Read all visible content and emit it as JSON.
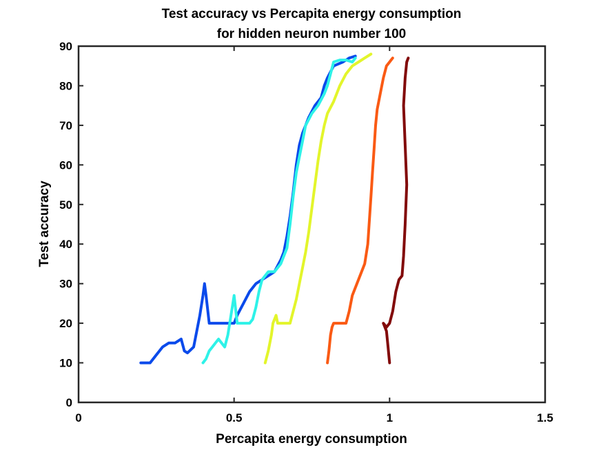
{
  "chart_data": {
    "type": "line",
    "title": "Test accuracy vs Percapita energy consumption",
    "subtitle": "for hidden neuron number 100",
    "xlabel": "Percapita energy consumption",
    "ylabel": "Test accuracy",
    "xlim": [
      0,
      1.5
    ],
    "ylim": [
      0,
      90
    ],
    "xticks": [
      0,
      0.5,
      1,
      1.5
    ],
    "xtick_labels": [
      "0",
      "0.5",
      "1",
      "1.5"
    ],
    "yticks": [
      0,
      10,
      20,
      30,
      40,
      50,
      60,
      70,
      80,
      90
    ],
    "ytick_labels": [
      "0",
      "10",
      "20",
      "30",
      "40",
      "50",
      "60",
      "70",
      "80",
      "90"
    ],
    "grid": false,
    "series": [
      {
        "color": "#0a4aeb",
        "points": [
          [
            0.2,
            10
          ],
          [
            0.23,
            10
          ],
          [
            0.25,
            12
          ],
          [
            0.27,
            14
          ],
          [
            0.29,
            15
          ],
          [
            0.31,
            15
          ],
          [
            0.33,
            16
          ],
          [
            0.34,
            13
          ],
          [
            0.35,
            12.5
          ],
          [
            0.37,
            14
          ],
          [
            0.38,
            18
          ],
          [
            0.39,
            22
          ],
          [
            0.4,
            27
          ],
          [
            0.405,
            30
          ],
          [
            0.41,
            27
          ],
          [
            0.42,
            20
          ],
          [
            0.44,
            20
          ],
          [
            0.48,
            20
          ],
          [
            0.5,
            20
          ],
          [
            0.51,
            22
          ],
          [
            0.53,
            25
          ],
          [
            0.55,
            28
          ],
          [
            0.57,
            30
          ],
          [
            0.59,
            31
          ],
          [
            0.61,
            32
          ],
          [
            0.63,
            33
          ],
          [
            0.65,
            36
          ],
          [
            0.66,
            38
          ],
          [
            0.67,
            42
          ],
          [
            0.68,
            47
          ],
          [
            0.69,
            53
          ],
          [
            0.7,
            60
          ],
          [
            0.71,
            65
          ],
          [
            0.72,
            68
          ],
          [
            0.74,
            72
          ],
          [
            0.76,
            75
          ],
          [
            0.78,
            77
          ],
          [
            0.79,
            80
          ],
          [
            0.8,
            82
          ],
          [
            0.82,
            85
          ],
          [
            0.85,
            86
          ],
          [
            0.87,
            87
          ],
          [
            0.89,
            87.5
          ]
        ]
      },
      {
        "color": "#2ef2e8",
        "points": [
          [
            0.4,
            10
          ],
          [
            0.41,
            11
          ],
          [
            0.42,
            13
          ],
          [
            0.43,
            14
          ],
          [
            0.44,
            15
          ],
          [
            0.45,
            16
          ],
          [
            0.47,
            14
          ],
          [
            0.48,
            17
          ],
          [
            0.49,
            22
          ],
          [
            0.5,
            27
          ],
          [
            0.51,
            20
          ],
          [
            0.53,
            20
          ],
          [
            0.55,
            20
          ],
          [
            0.56,
            21
          ],
          [
            0.57,
            24
          ],
          [
            0.58,
            28
          ],
          [
            0.59,
            31
          ],
          [
            0.61,
            33
          ],
          [
            0.63,
            33
          ],
          [
            0.65,
            35
          ],
          [
            0.67,
            39
          ],
          [
            0.68,
            45
          ],
          [
            0.69,
            52
          ],
          [
            0.7,
            58
          ],
          [
            0.71,
            62
          ],
          [
            0.72,
            66
          ],
          [
            0.73,
            70
          ],
          [
            0.75,
            73
          ],
          [
            0.77,
            75
          ],
          [
            0.79,
            78
          ],
          [
            0.8,
            80
          ],
          [
            0.81,
            83
          ],
          [
            0.82,
            86
          ],
          [
            0.84,
            86.5
          ],
          [
            0.86,
            86.5
          ],
          [
            0.88,
            86
          ],
          [
            0.89,
            87
          ]
        ]
      },
      {
        "color": "#e3f52b",
        "points": [
          [
            0.6,
            10
          ],
          [
            0.61,
            13
          ],
          [
            0.62,
            17
          ],
          [
            0.625,
            20
          ],
          [
            0.635,
            22
          ],
          [
            0.64,
            20
          ],
          [
            0.66,
            20
          ],
          [
            0.68,
            20
          ],
          [
            0.69,
            23
          ],
          [
            0.7,
            26
          ],
          [
            0.71,
            30
          ],
          [
            0.72,
            34
          ],
          [
            0.73,
            38
          ],
          [
            0.74,
            43
          ],
          [
            0.75,
            49
          ],
          [
            0.76,
            55
          ],
          [
            0.77,
            61
          ],
          [
            0.78,
            66
          ],
          [
            0.79,
            70
          ],
          [
            0.8,
            73
          ],
          [
            0.82,
            76
          ],
          [
            0.84,
            80
          ],
          [
            0.86,
            83
          ],
          [
            0.88,
            85
          ],
          [
            0.9,
            86
          ],
          [
            0.92,
            87
          ],
          [
            0.94,
            88
          ]
        ]
      },
      {
        "color": "#fa5a14",
        "points": [
          [
            0.8,
            10
          ],
          [
            0.805,
            13
          ],
          [
            0.81,
            17
          ],
          [
            0.815,
            19
          ],
          [
            0.82,
            20
          ],
          [
            0.84,
            20
          ],
          [
            0.86,
            20
          ],
          [
            0.87,
            23
          ],
          [
            0.88,
            27
          ],
          [
            0.9,
            31
          ],
          [
            0.92,
            35
          ],
          [
            0.93,
            40
          ],
          [
            0.935,
            46
          ],
          [
            0.94,
            52
          ],
          [
            0.945,
            58
          ],
          [
            0.95,
            64
          ],
          [
            0.955,
            70
          ],
          [
            0.96,
            74
          ],
          [
            0.97,
            78
          ],
          [
            0.98,
            82
          ],
          [
            0.99,
            85
          ],
          [
            1.0,
            86
          ],
          [
            1.01,
            87
          ]
        ]
      },
      {
        "color": "#820a0a",
        "points": [
          [
            1.0,
            10
          ],
          [
            0.995,
            14
          ],
          [
            0.99,
            18
          ],
          [
            0.985,
            19
          ],
          [
            0.98,
            20
          ],
          [
            0.99,
            19
          ],
          [
            1.0,
            20
          ],
          [
            1.01,
            23
          ],
          [
            1.02,
            28
          ],
          [
            1.03,
            31
          ],
          [
            1.04,
            32
          ],
          [
            1.045,
            37
          ],
          [
            1.05,
            45
          ],
          [
            1.055,
            55
          ],
          [
            1.05,
            65
          ],
          [
            1.045,
            75
          ],
          [
            1.05,
            82
          ],
          [
            1.055,
            86
          ],
          [
            1.06,
            87
          ]
        ]
      }
    ]
  }
}
